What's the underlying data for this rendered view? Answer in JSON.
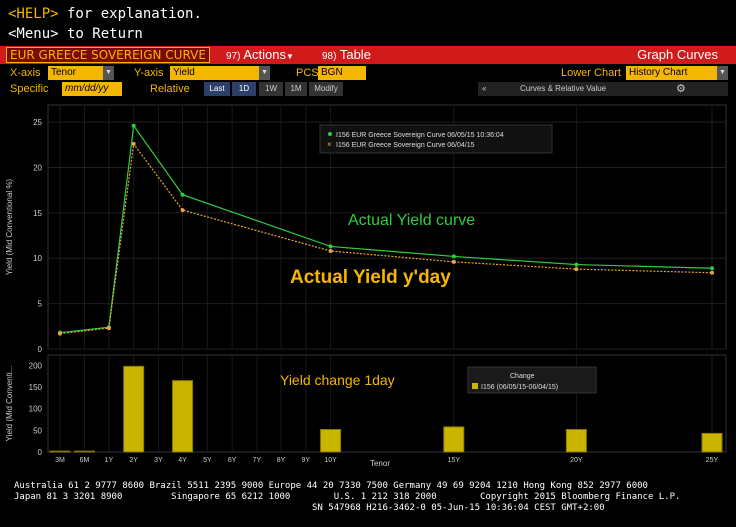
{
  "topbar": {
    "help_key": "<HELP>",
    "help_text": " for explanation.",
    "menu_line": "<Menu> to Return"
  },
  "titlebar": {
    "title": "EUR GREECE SOVEREIGN CURVE",
    "actions_num": "97)",
    "actions_label": "Actions",
    "table_num": "98)",
    "table_label": "Table",
    "graph_curves": "Graph Curves"
  },
  "settings": {
    "xaxis_label": "X-axis",
    "xaxis_value": "Tenor",
    "yaxis_label": "Y-axis",
    "yaxis_value": "Yield",
    "pcs_label": "PCS",
    "pcs_value": "BGN",
    "lower_chart_label": "Lower Chart",
    "lower_chart_value": "History Chart"
  },
  "specific_row": {
    "specific_label": "Specific",
    "date_placeholder": "mm/dd/yy",
    "relative_label": "Relative",
    "periods": [
      "Last",
      "1D",
      "1W",
      "1M"
    ],
    "active_period": "Last",
    "modify_label": "Modify",
    "collapse_glyph": "«",
    "curves_label": "Curves & Relative Value",
    "gear_glyph": "⚙"
  },
  "chart_data": [
    {
      "type": "line",
      "categories": [
        "3M",
        "6M",
        "1Y",
        "2Y",
        "3Y",
        "4Y",
        "5Y",
        "6Y",
        "7Y",
        "8Y",
        "9Y",
        "10Y",
        "15Y",
        "20Y",
        "25Y"
      ],
      "x": [
        0.25,
        0.5,
        1,
        2,
        3,
        4,
        5,
        6,
        7,
        8,
        9,
        10,
        15,
        20,
        25
      ],
      "series": [
        {
          "name": "I156 EUR Greece Sovereign Curve 06/05/15 10:36:04",
          "color": "#2ecc40",
          "x": [
            0.25,
            1,
            2,
            4,
            10,
            15,
            20,
            25
          ],
          "values": [
            1.8,
            2.4,
            24.6,
            17.0,
            11.3,
            10.2,
            9.3,
            8.9
          ]
        },
        {
          "name": "I156 EUR Greece Sovereign Curve 06/04/15",
          "color": "#e8a33c",
          "x": [
            0.25,
            1,
            2,
            4,
            10,
            15,
            20,
            25
          ],
          "values": [
            1.7,
            2.3,
            22.6,
            15.3,
            10.8,
            9.6,
            8.8,
            8.4
          ]
        }
      ],
      "ylabel": "Yield (Mid Conventional %)",
      "yticks": [
        0,
        5,
        10,
        15,
        20,
        25
      ],
      "ylim": [
        0,
        26
      ],
      "annotations": {
        "curve": "Actual Yield curve",
        "yday": "Actual Yield y'day"
      }
    },
    {
      "type": "bar",
      "x": [
        0.25,
        0.5,
        2,
        4,
        10,
        15,
        20,
        25
      ],
      "values": [
        2,
        2,
        198,
        165,
        52,
        58,
        52,
        43
      ],
      "color": "#c9b400",
      "ylabel": "Yield (Mid Conventi...",
      "yticks": [
        0,
        50,
        100,
        150,
        200
      ],
      "ylim": [
        0,
        215
      ],
      "legend_title": "Change",
      "legend_entry": "I156 (06/05/15-06/04/15)",
      "annotation": "Yield change 1day",
      "xlabel": "Tenor"
    }
  ],
  "footer": {
    "line1": "Australia 61 2 9777 8600 Brazil 5511 2395 9000 Europe 44 20 7330 7500 Germany 49 69 9204 1210 Hong Kong 852 2977 6000",
    "line2": "Japan 81 3 3201 8900         Singapore 65 6212 1000        U.S. 1 212 318 2000        Copyright 2015 Bloomberg Finance L.P.",
    "line3": "                                                       SN 547968 H216-3462-0 05-Jun-15 10:36:04 CEST GMT+2:00"
  }
}
